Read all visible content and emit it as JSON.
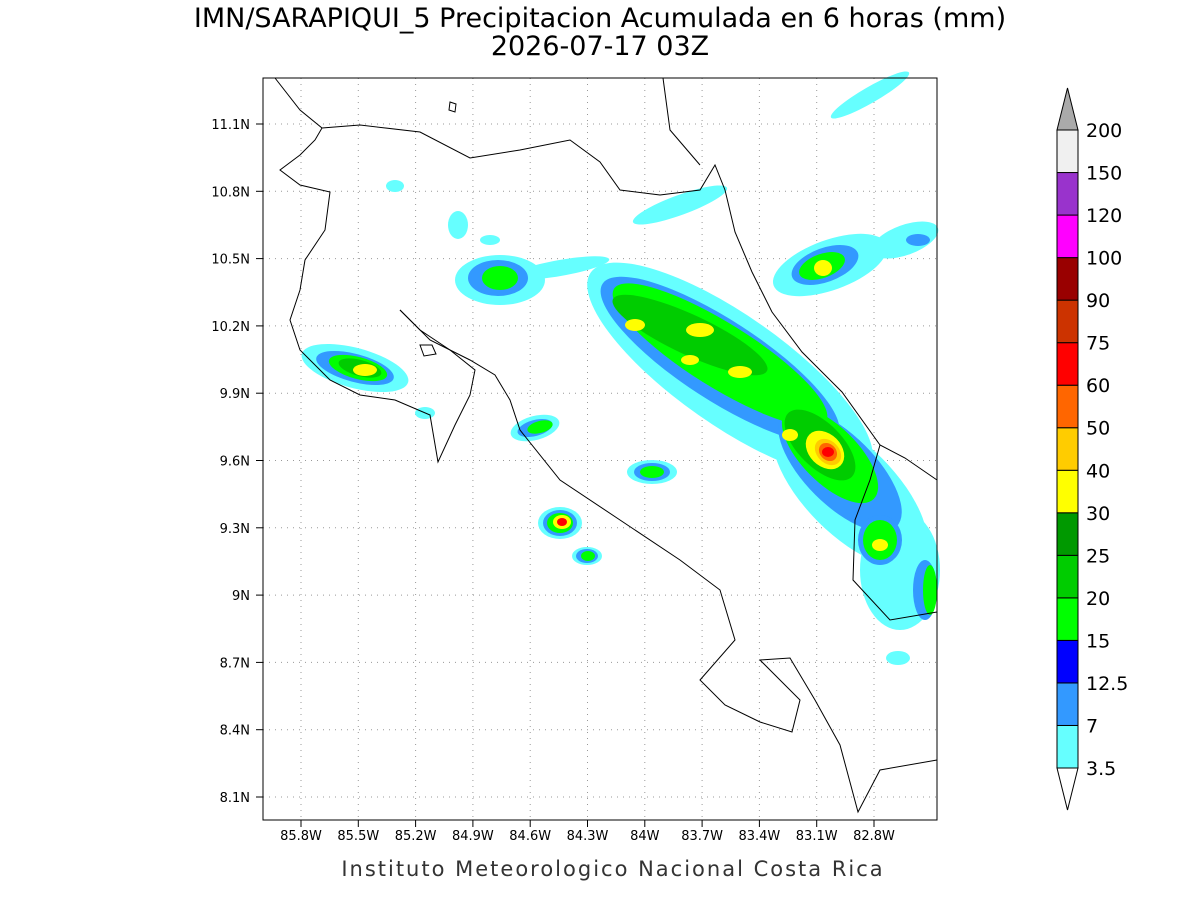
{
  "title": "IMN/SARAPIQUI_5 Precipitacion Acumulada en 6 horas (mm)",
  "subtitle": "2026-07-17 03Z",
  "map": {
    "lat_ticks": [
      "11.1N",
      "10.8N",
      "10.5N",
      "10.2N",
      "9.9N",
      "9.6N",
      "9.3N",
      "9N",
      "8.7N",
      "8.4N",
      "8.1N"
    ],
    "lon_ticks": [
      "85.8W",
      "85.5W",
      "85.2W",
      "84.9W",
      "84.6W",
      "84.3W",
      "84W",
      "83.7W",
      "83.4W",
      "83.1W",
      "82.8W"
    ]
  },
  "colorbar": {
    "levels": [
      "3.5",
      "7",
      "12.5",
      "15",
      "20",
      "25",
      "30",
      "40",
      "50",
      "60",
      "75",
      "90",
      "100",
      "120",
      "150",
      "200"
    ],
    "colors": [
      "#66ffff",
      "#3399ff",
      "#0000ff",
      "#00ff00",
      "#00cc00",
      "#009900",
      "#ffff00",
      "#ffcc00",
      "#ff6600",
      "#ff0000",
      "#cc3300",
      "#990000",
      "#ff00ff",
      "#9933cc",
      "#f0f0f0"
    ]
  },
  "footer": "Instituto Meteorologico Nacional Costa Rica"
}
